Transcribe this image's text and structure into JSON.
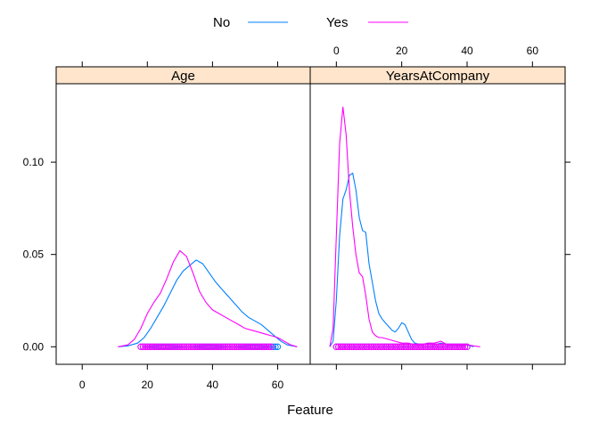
{
  "chart_data": {
    "type": "line",
    "subtype": "density-plot-with-rug",
    "xlabel": "Feature",
    "ylabel": "",
    "legend": {
      "placement": "top",
      "entries": [
        {
          "name": "No",
          "color": "#0080ff"
        },
        {
          "name": "Yes",
          "color": "#ff00ff"
        }
      ]
    },
    "y_ticks": [
      0.0,
      0.05,
      0.1
    ],
    "y_tick_labels": [
      "0.00",
      "0.05",
      "0.10"
    ],
    "ylim": [
      -0.0095,
      0.1425
    ],
    "xlim": [
      -8,
      70
    ],
    "x_ticks": [
      0,
      20,
      40,
      60
    ],
    "x_tick_labels": [
      "0",
      "20",
      "40",
      "60"
    ],
    "panels": [
      {
        "strip": "Age",
        "series": [
          {
            "name": "No",
            "color": "#0080ff",
            "x": [
              11,
              14,
              17,
              19,
              21,
              23,
              25,
              27,
              29,
              31,
              33,
              35,
              37,
              39,
              41,
              43,
              45,
              47,
              49,
              51,
              53,
              55,
              57,
              59,
              61,
              63,
              66
            ],
            "y": [
              0,
              0.0005,
              0.002,
              0.005,
              0.01,
              0.016,
              0.022,
              0.029,
              0.036,
              0.041,
              0.044,
              0.047,
              0.045,
              0.04,
              0.035,
              0.031,
              0.027,
              0.023,
              0.019,
              0.016,
              0.014,
              0.012,
              0.009,
              0.006,
              0.003,
              0.001,
              0
            ]
          },
          {
            "name": "Yes",
            "color": "#ff00ff",
            "x": [
              11,
              14,
              16,
              18,
              20,
              22,
              24,
              26,
              28,
              30,
              32,
              34,
              36,
              38,
              40,
              42,
              44,
              46,
              48,
              50,
              52,
              54,
              56,
              58,
              60,
              62,
              64,
              66
            ],
            "y": [
              0,
              0.001,
              0.004,
              0.01,
              0.018,
              0.024,
              0.029,
              0.037,
              0.046,
              0.052,
              0.049,
              0.04,
              0.03,
              0.024,
              0.02,
              0.018,
              0.016,
              0.014,
              0.012,
              0.01,
              0.009,
              0.008,
              0.007,
              0.006,
              0.005,
              0.003,
              0.001,
              0
            ]
          }
        ],
        "rug": {
          "No": {
            "min": 18,
            "max": 60
          },
          "Yes": {
            "min": 18,
            "max": 58
          }
        }
      },
      {
        "strip": "YearsAtCompany",
        "series": [
          {
            "name": "No",
            "color": "#0080ff",
            "x": [
              -2,
              -1,
              0,
              1,
              2,
              3,
              4,
              5,
              6,
              7,
              8,
              9,
              10,
              11,
              12,
              13,
              14,
              15,
              16,
              17,
              18,
              19,
              20,
              21,
              22,
              23,
              24,
              26,
              28,
              30,
              32,
              34,
              36,
              38,
              40,
              42
            ],
            "y": [
              0,
              0.003,
              0.025,
              0.06,
              0.08,
              0.085,
              0.093,
              0.094,
              0.085,
              0.07,
              0.063,
              0.062,
              0.045,
              0.035,
              0.025,
              0.018,
              0.015,
              0.013,
              0.011,
              0.009,
              0.008,
              0.01,
              0.013,
              0.012,
              0.008,
              0.004,
              0.002,
              0.001,
              0.002,
              0.001,
              0.002,
              0.001,
              0.001,
              0.0005,
              0.001,
              0
            ]
          },
          {
            "name": "Yes",
            "color": "#ff00ff",
            "x": [
              -2,
              -1,
              0,
              1,
              2,
              3,
              4,
              5,
              6,
              7,
              8,
              9,
              10,
              11,
              12,
              13,
              14,
              16,
              18,
              20,
              22,
              24,
              26,
              28,
              30,
              32,
              34,
              36,
              38,
              40,
              42,
              44
            ],
            "y": [
              0,
              0.01,
              0.06,
              0.11,
              0.13,
              0.115,
              0.085,
              0.065,
              0.05,
              0.04,
              0.038,
              0.028,
              0.015,
              0.008,
              0.006,
              0.005,
              0.005,
              0.004,
              0.003,
              0.002,
              0.002,
              0.001,
              0.001,
              0.002,
              0.002,
              0.003,
              0.001,
              0.001,
              0.001,
              0.001,
              0.0005,
              0
            ]
          }
        ],
        "rug": {
          "No": {
            "min": 0,
            "max": 40
          },
          "Yes": {
            "min": 0,
            "max": 40
          }
        }
      }
    ]
  }
}
